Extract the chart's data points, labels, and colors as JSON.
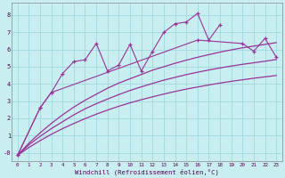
{
  "background_color": "#c8eef0",
  "grid_color": "#a0d8e0",
  "line_color": "#993399",
  "xlabel": "Windchill (Refroidissement éolien,°C)",
  "xlim": [
    -0.5,
    23.5
  ],
  "ylim": [
    -0.5,
    8.7
  ],
  "yticks": [
    0,
    1,
    2,
    3,
    4,
    5,
    6,
    7,
    8
  ],
  "ytick_labels": [
    "-0",
    "1",
    "2",
    "3",
    "4",
    "5",
    "6",
    "7",
    "8"
  ],
  "xticks": [
    0,
    1,
    2,
    3,
    4,
    5,
    6,
    7,
    8,
    9,
    10,
    11,
    12,
    13,
    14,
    15,
    16,
    17,
    18,
    19,
    20,
    21,
    22,
    23
  ],
  "line1_x": [
    0,
    2,
    3,
    4,
    5,
    6,
    7,
    8,
    9,
    10,
    11,
    12,
    13,
    14,
    15,
    16,
    17,
    18
  ],
  "line1_y": [
    -0.15,
    2.6,
    3.5,
    4.6,
    5.3,
    5.4,
    6.35,
    4.75,
    5.1,
    6.3,
    4.75,
    5.9,
    7.0,
    7.5,
    7.6,
    8.1,
    6.55,
    7.45
  ],
  "line2_x": [
    0,
    2,
    3,
    16,
    20,
    21,
    22,
    23
  ],
  "line2_y": [
    -0.15,
    2.6,
    3.5,
    6.55,
    6.35,
    5.9,
    6.65,
    5.55
  ],
  "smooth1_x": [
    0,
    1,
    2,
    3,
    4,
    5,
    6,
    7,
    8,
    9,
    10,
    11,
    12,
    13,
    14,
    15,
    16,
    17,
    18,
    19,
    20,
    21,
    22,
    23
  ],
  "smooth1_y": [
    -0.15,
    0.55,
    1.15,
    1.7,
    2.2,
    2.65,
    3.05,
    3.4,
    3.75,
    4.05,
    4.3,
    4.55,
    4.8,
    5.0,
    5.2,
    5.38,
    5.55,
    5.7,
    5.85,
    5.98,
    6.1,
    6.2,
    6.3,
    6.4
  ],
  "smooth2_x": [
    0,
    1,
    2,
    3,
    4,
    5,
    6,
    7,
    8,
    9,
    10,
    11,
    12,
    13,
    14,
    15,
    16,
    17,
    18,
    19,
    20,
    21,
    22,
    23
  ],
  "smooth2_y": [
    -0.15,
    0.45,
    0.95,
    1.4,
    1.8,
    2.2,
    2.55,
    2.85,
    3.12,
    3.38,
    3.62,
    3.83,
    4.03,
    4.22,
    4.38,
    4.54,
    4.68,
    4.81,
    4.93,
    5.04,
    5.14,
    5.23,
    5.32,
    5.42
  ],
  "smooth3_x": [
    0,
    1,
    2,
    3,
    4,
    5,
    6,
    7,
    8,
    9,
    10,
    11,
    12,
    13,
    14,
    15,
    16,
    17,
    18,
    19,
    20,
    21,
    22,
    23
  ],
  "smooth3_y": [
    -0.15,
    0.3,
    0.7,
    1.07,
    1.4,
    1.7,
    1.98,
    2.24,
    2.48,
    2.7,
    2.9,
    3.08,
    3.25,
    3.41,
    3.56,
    3.7,
    3.82,
    3.94,
    4.05,
    4.15,
    4.24,
    4.33,
    4.41,
    4.49
  ]
}
